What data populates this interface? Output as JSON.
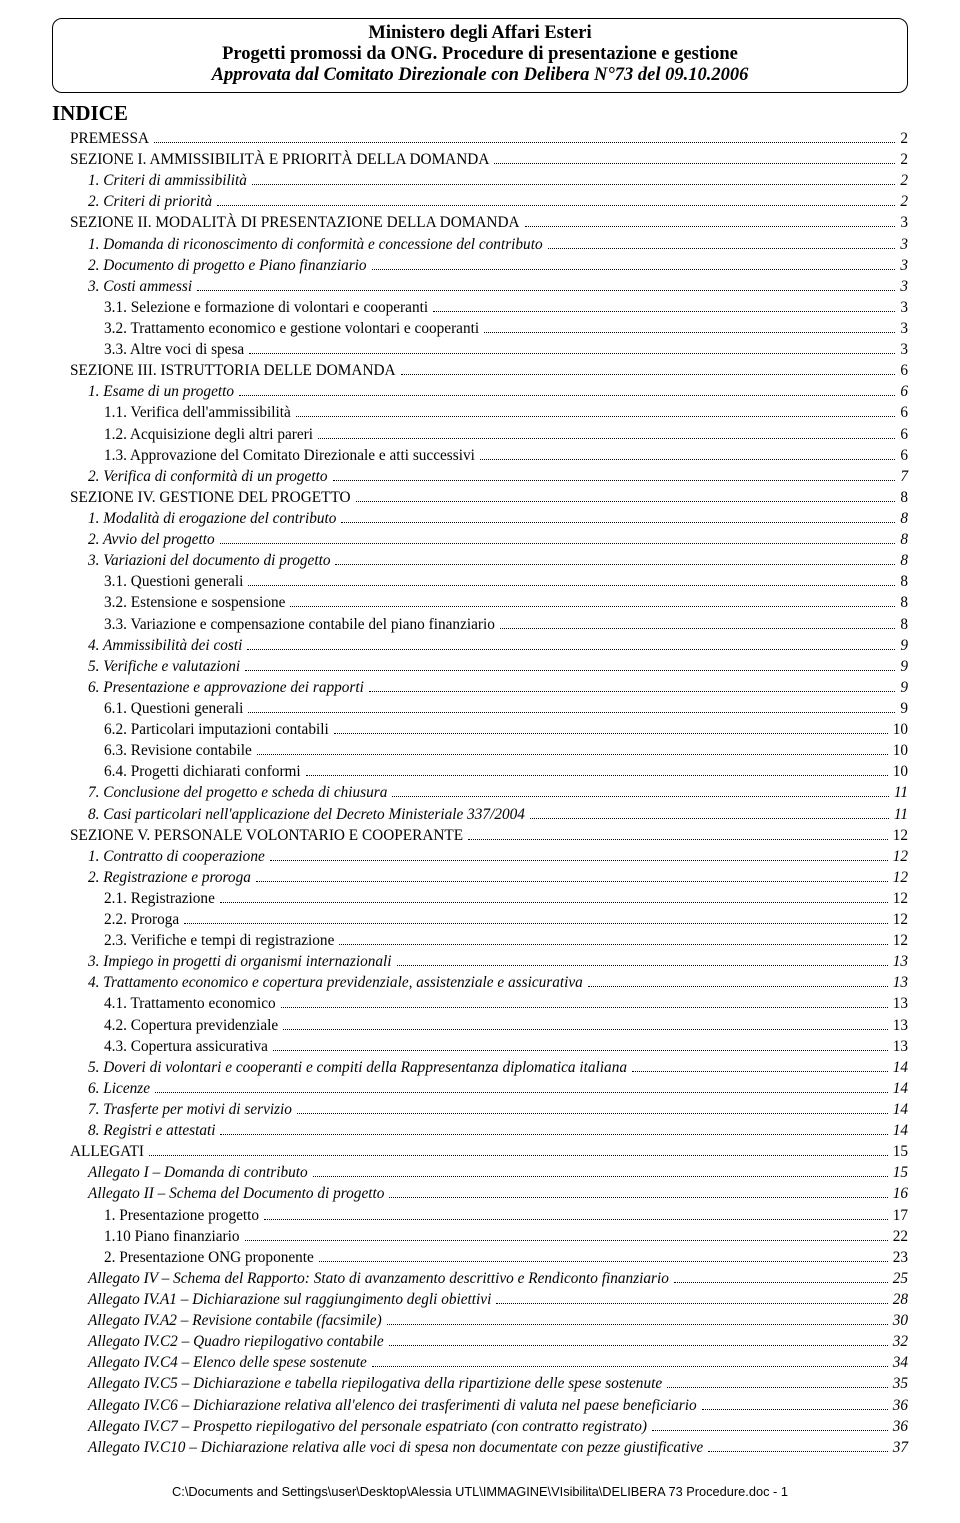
{
  "header": {
    "line1": "Ministero degli Affari Esteri",
    "line2": "Progetti promossi da ONG. Procedure di presentazione e gestione",
    "line3": "Approvata dal Comitato Direzionale con Delibera N°73 del 09.10.2006"
  },
  "indice_title": "INDICE",
  "toc": [
    {
      "label": "PREMESSA",
      "page": "2",
      "level": 1,
      "style": "smallcaps"
    },
    {
      "label": "SEZIONE I. AMMISSIBILITÀ E PRIORITÀ DELLA DOMANDA",
      "page": "2",
      "level": 1,
      "style": "smallcaps"
    },
    {
      "label": "1. Criteri di ammissibilità",
      "page": "2",
      "level": 2,
      "style": "italic"
    },
    {
      "label": "2. Criteri di priorità",
      "page": "2",
      "level": 2,
      "style": "italic"
    },
    {
      "label": "SEZIONE II. MODALITÀ DI PRESENTAZIONE DELLA DOMANDA",
      "page": "3",
      "level": 1,
      "style": "smallcaps"
    },
    {
      "label": "1. Domanda di riconoscimento di conformità e concessione del contributo",
      "page": "3",
      "level": 2,
      "style": "italic"
    },
    {
      "label": "2. Documento di progetto e Piano finanziario",
      "page": "3",
      "level": 2,
      "style": "italic"
    },
    {
      "label": "3. Costi ammessi",
      "page": "3",
      "level": 2,
      "style": "italic"
    },
    {
      "label": "3.1. Selezione e formazione di volontari e cooperanti",
      "page": "3",
      "level": 3,
      "style": ""
    },
    {
      "label": "3.2. Trattamento economico e gestione volontari e cooperanti",
      "page": "3",
      "level": 3,
      "style": ""
    },
    {
      "label": "3.3. Altre voci di spesa",
      "page": "3",
      "level": 3,
      "style": ""
    },
    {
      "label": "SEZIONE III. ISTRUTTORIA DELLE DOMANDA",
      "page": "6",
      "level": 1,
      "style": "smallcaps"
    },
    {
      "label": "1. Esame di un progetto",
      "page": "6",
      "level": 2,
      "style": "italic"
    },
    {
      "label": "1.1. Verifica dell'ammissibilità",
      "page": "6",
      "level": 3,
      "style": ""
    },
    {
      "label": "1.2. Acquisizione degli altri pareri",
      "page": "6",
      "level": 3,
      "style": ""
    },
    {
      "label": "1.3. Approvazione del Comitato Direzionale e atti successivi",
      "page": "6",
      "level": 3,
      "style": ""
    },
    {
      "label": "2. Verifica di conformità di un progetto",
      "page": "7",
      "level": 2,
      "style": "italic"
    },
    {
      "label": "SEZIONE IV. GESTIONE DEL PROGETTO",
      "page": "8",
      "level": 1,
      "style": "smallcaps"
    },
    {
      "label": "1. Modalità di erogazione del contributo",
      "page": "8",
      "level": 2,
      "style": "italic"
    },
    {
      "label": "2. Avvio del progetto",
      "page": "8",
      "level": 2,
      "style": "italic"
    },
    {
      "label": "3. Variazioni del documento di progetto",
      "page": "8",
      "level": 2,
      "style": "italic"
    },
    {
      "label": "3.1. Questioni generali",
      "page": "8",
      "level": 3,
      "style": ""
    },
    {
      "label": "3.2. Estensione e sospensione",
      "page": "8",
      "level": 3,
      "style": ""
    },
    {
      "label": "3.3. Variazione e compensazione contabile del piano finanziario",
      "page": "8",
      "level": 3,
      "style": ""
    },
    {
      "label": "4. Ammissibilità dei costi",
      "page": "9",
      "level": 2,
      "style": "italic"
    },
    {
      "label": "5. Verifiche e valutazioni",
      "page": "9",
      "level": 2,
      "style": "italic"
    },
    {
      "label": "6. Presentazione e approvazione dei rapporti",
      "page": "9",
      "level": 2,
      "style": "italic"
    },
    {
      "label": "6.1. Questioni generali",
      "page": "9",
      "level": 3,
      "style": ""
    },
    {
      "label": "6.2. Particolari imputazioni contabili",
      "page": "10",
      "level": 3,
      "style": ""
    },
    {
      "label": "6.3. Revisione contabile",
      "page": "10",
      "level": 3,
      "style": ""
    },
    {
      "label": "6.4. Progetti dichiarati conformi",
      "page": "10",
      "level": 3,
      "style": ""
    },
    {
      "label": "7. Conclusione del progetto e scheda di chiusura",
      "page": "11",
      "level": 2,
      "style": "italic"
    },
    {
      "label": "8. Casi particolari nell'applicazione del Decreto Ministeriale 337/2004",
      "page": "11",
      "level": 2,
      "style": "italic"
    },
    {
      "label": "SEZIONE V. PERSONALE VOLONTARIO E COOPERANTE",
      "page": "12",
      "level": 1,
      "style": "smallcaps"
    },
    {
      "label": "1. Contratto di cooperazione",
      "page": "12",
      "level": 2,
      "style": "italic"
    },
    {
      "label": "2. Registrazione e proroga",
      "page": "12",
      "level": 2,
      "style": "italic"
    },
    {
      "label": "2.1. Registrazione",
      "page": "12",
      "level": 3,
      "style": ""
    },
    {
      "label": "2.2. Proroga",
      "page": "12",
      "level": 3,
      "style": ""
    },
    {
      "label": "2.3. Verifiche e tempi di registrazione",
      "page": "12",
      "level": 3,
      "style": ""
    },
    {
      "label": "3. Impiego in progetti di organismi internazionali",
      "page": "13",
      "level": 2,
      "style": "italic"
    },
    {
      "label": "4. Trattamento economico e copertura previdenziale, assistenziale e assicurativa",
      "page": "13",
      "level": 2,
      "style": "italic"
    },
    {
      "label": "4.1. Trattamento economico",
      "page": "13",
      "level": 3,
      "style": ""
    },
    {
      "label": "4.2. Copertura previdenziale",
      "page": "13",
      "level": 3,
      "style": ""
    },
    {
      "label": "4.3. Copertura assicurativa",
      "page": "13",
      "level": 3,
      "style": ""
    },
    {
      "label": "5. Doveri di volontari e cooperanti e compiti della Rappresentanza diplomatica italiana",
      "page": "14",
      "level": 2,
      "style": "italic"
    },
    {
      "label": "6. Licenze",
      "page": "14",
      "level": 2,
      "style": "italic"
    },
    {
      "label": "7. Trasferte per motivi di servizio",
      "page": "14",
      "level": 2,
      "style": "italic"
    },
    {
      "label": "8. Registri e attestati",
      "page": "14",
      "level": 2,
      "style": "italic"
    },
    {
      "label": "ALLEGATI",
      "page": "15",
      "level": 1,
      "style": "smallcaps"
    },
    {
      "label": "Allegato I – Domanda di contributo",
      "page": "15",
      "level": 2,
      "style": "italic"
    },
    {
      "label": "Allegato II – Schema del Documento di progetto",
      "page": "16",
      "level": 2,
      "style": "italic"
    },
    {
      "label": "1. Presentazione progetto",
      "page": "17",
      "level": 3,
      "style": ""
    },
    {
      "label": "1.10 Piano finanziario",
      "page": "22",
      "level": 3,
      "style": ""
    },
    {
      "label": "2. Presentazione ONG proponente",
      "page": "23",
      "level": 3,
      "style": ""
    },
    {
      "label": "Allegato IV – Schema del Rapporto: Stato di avanzamento descrittivo e Rendiconto finanziario",
      "page": "25",
      "level": 2,
      "style": "italic"
    },
    {
      "label": "Allegato IV.A1 – Dichiarazione sul raggiungimento degli obiettivi",
      "page": "28",
      "level": 2,
      "style": "italic"
    },
    {
      "label": "Allegato IV.A2 – Revisione contabile (facsimile)",
      "page": "30",
      "level": 2,
      "style": "italic"
    },
    {
      "label": "Allegato IV.C2 – Quadro riepilogativo contabile",
      "page": "32",
      "level": 2,
      "style": "italic"
    },
    {
      "label": "Allegato IV.C4 – Elenco delle spese sostenute",
      "page": "34",
      "level": 2,
      "style": "italic"
    },
    {
      "label": "Allegato IV.C5 – Dichiarazione e tabella riepilogativa della ripartizione delle spese sostenute",
      "page": "35",
      "level": 2,
      "style": "italic"
    },
    {
      "label": "Allegato IV.C6 – Dichiarazione relativa all'elenco dei trasferimenti di valuta nel paese beneficiario",
      "page": "36",
      "level": 2,
      "style": "italic"
    },
    {
      "label": "Allegato IV.C7 – Prospetto riepilogativo del personale espatriato (con contratto registrato)",
      "page": "36",
      "level": 2,
      "style": "italic"
    },
    {
      "label": "Allegato IV.C10 – Dichiarazione relativa alle voci di spesa non documentate con pezze giustificative",
      "page": "37",
      "level": 2,
      "style": "italic"
    }
  ],
  "footer": "C:\\Documents and Settings\\user\\Desktop\\Alessia UTL\\IMMAGINE\\VIsibilita\\DELIBERA 73 Procedure.doc - 1"
}
